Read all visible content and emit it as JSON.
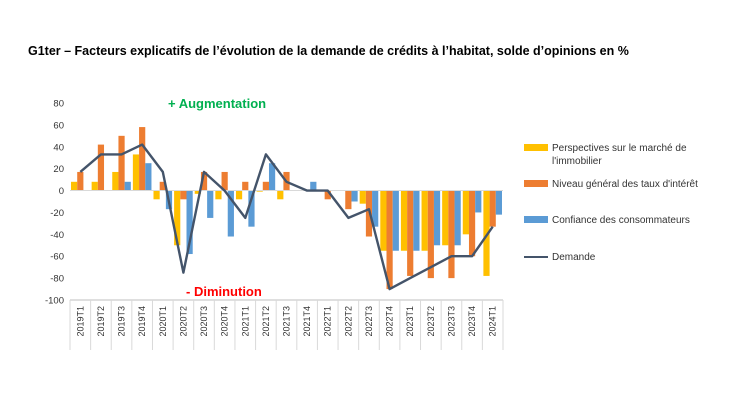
{
  "chart_data": {
    "type": "bar",
    "title": "G1ter – Facteurs explicatifs de l’évolution de la demande de crédits à l’habitat, solde d’opinions en %",
    "ylim": [
      -100,
      80
    ],
    "yticks": [
      -100,
      -80,
      -60,
      -40,
      -20,
      0,
      20,
      40,
      60,
      80
    ],
    "grid": false,
    "legend_position": "right",
    "categories": [
      "2019T1",
      "2019T2",
      "2019T3",
      "2019T4",
      "2020T1",
      "2020T2",
      "2020T3",
      "2020T4",
      "2021T1",
      "2021T2",
      "2021T3",
      "2021T4",
      "2022T1",
      "2022T2",
      "2022T3",
      "2022T4",
      "2023T1",
      "2023T2",
      "2023T3",
      "2023T4",
      "2024T1"
    ],
    "series": [
      {
        "name": "Perspectives sur le marché de l'immobilier",
        "kind": "bar",
        "color": "#FFC000",
        "values": [
          8,
          8,
          17,
          33,
          -8,
          -50,
          -3,
          -8,
          -8,
          -1,
          -8,
          0,
          0,
          0,
          -12,
          -55,
          -55,
          -55,
          -50,
          -40,
          -78
        ]
      },
      {
        "name": "Niveau général des taux d'intérêt",
        "kind": "bar",
        "color": "#ED7D31",
        "values": [
          17,
          42,
          50,
          58,
          8,
          -8,
          17,
          17,
          8,
          8,
          17,
          0,
          -8,
          -17,
          -42,
          -90,
          -78,
          -80,
          -80,
          -60,
          -33
        ]
      },
      {
        "name": "Confiance des consommateurs",
        "kind": "bar",
        "color": "#5B9BD5",
        "values": [
          0,
          0,
          8,
          25,
          -17,
          -58,
          -25,
          -42,
          -33,
          25,
          0,
          8,
          0,
          -10,
          -33,
          -55,
          -55,
          -50,
          -50,
          -20,
          -22
        ]
      },
      {
        "name": "Demande",
        "kind": "line",
        "color": "#44546A",
        "values": [
          17,
          33,
          33,
          42,
          17,
          -75,
          17,
          0,
          -25,
          33,
          8,
          0,
          0,
          -25,
          -17,
          -90,
          -80,
          -70,
          -60,
          -60,
          -33
        ]
      }
    ],
    "annotations": [
      {
        "text": "+ Augmentation",
        "color": "#00B050"
      },
      {
        "text": "- Diminution",
        "color": "#FF0000"
      }
    ]
  }
}
